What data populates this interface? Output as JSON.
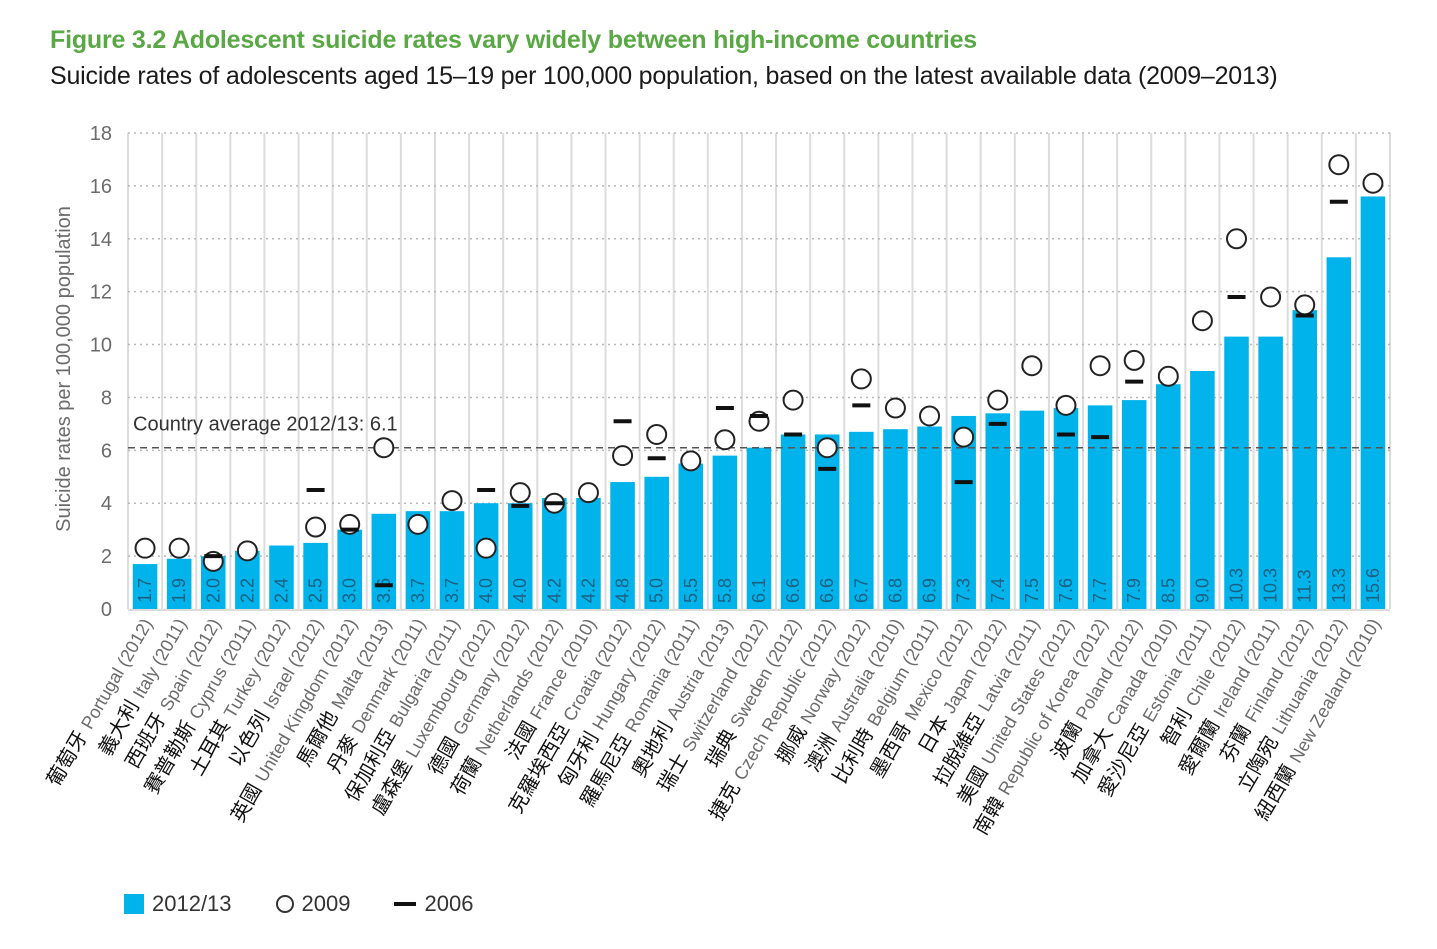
{
  "figure": {
    "title": "Figure 3.2  Adolescent suicide rates vary widely between high-income countries",
    "subtitle": "Suicide rates of adolescents aged 15–19 per 100,000 population, based on the latest available data (2009–2013)"
  },
  "colors": {
    "title_green": "#5aa845",
    "bar_blue": "#00b4eb",
    "bar_label": "#1d5f80",
    "marker": "#111111"
  },
  "legend": {
    "items": [
      {
        "label": "2012/13",
        "kind": "bar"
      },
      {
        "label": "2009",
        "kind": "circle"
      },
      {
        "label": "2006",
        "kind": "dash"
      }
    ]
  },
  "chart_data": {
    "type": "bar",
    "title": "Adolescent suicide rates vary widely between high-income countries",
    "xlabel": "",
    "ylabel": "Suicide rates per 100,000 population",
    "ylim": [
      0,
      18
    ],
    "yticks": [
      0,
      2,
      4,
      6,
      8,
      10,
      12,
      14,
      16,
      18
    ],
    "grid": true,
    "legend_position": "bottom-left",
    "reference_line": {
      "label": "Country average 2012/13: 6.1",
      "value": 6.1
    },
    "categories": [
      {
        "zh": "葡萄牙",
        "en": "Portugal (2012)"
      },
      {
        "zh": "義大利",
        "en": "Italy (2011)"
      },
      {
        "zh": "西班牙",
        "en": "Spain (2012)"
      },
      {
        "zh": "賽普勒斯",
        "en": "Cyprus (2011)"
      },
      {
        "zh": "土耳其",
        "en": "Turkey (2012)"
      },
      {
        "zh": "以色列",
        "en": "Israel (2012)"
      },
      {
        "zh": "英國",
        "en": "United Kingdom (2012)"
      },
      {
        "zh": "馬爾他",
        "en": "Malta (2013)"
      },
      {
        "zh": "丹麥",
        "en": "Denmark (2011)"
      },
      {
        "zh": "保加利亞",
        "en": "Bulgaria (2011)"
      },
      {
        "zh": "盧森堡",
        "en": "Luxembourg (2012)"
      },
      {
        "zh": "德國",
        "en": "Germany (2012)"
      },
      {
        "zh": "荷蘭",
        "en": "Netherlands (2012)"
      },
      {
        "zh": "法國",
        "en": "France (2010)"
      },
      {
        "zh": "克羅埃西亞",
        "en": "Croatia (2012)"
      },
      {
        "zh": "匈牙利",
        "en": "Hungary (2012)"
      },
      {
        "zh": "羅馬尼亞",
        "en": "Romania (2011)"
      },
      {
        "zh": "奧地利",
        "en": "Austria (2013)"
      },
      {
        "zh": "瑞士",
        "en": "Switzerland (2012)"
      },
      {
        "zh": "瑞典",
        "en": "Sweden (2012)"
      },
      {
        "zh": "捷克",
        "en": "Czech Republic (2012)"
      },
      {
        "zh": "挪威",
        "en": "Norway (2012)"
      },
      {
        "zh": "澳洲",
        "en": "Australia (2010)"
      },
      {
        "zh": "比利時",
        "en": "Belgium (2011)"
      },
      {
        "zh": "墨西哥",
        "en": "Mexico (2012)"
      },
      {
        "zh": "日本",
        "en": "Japan (2012)"
      },
      {
        "zh": "拉脫維亞",
        "en": "Latvia (2011)"
      },
      {
        "zh": "美國",
        "en": "United States (2012)"
      },
      {
        "zh": "南韓",
        "en": "Republic of Korea (2012)"
      },
      {
        "zh": "波蘭",
        "en": "Poland (2012)"
      },
      {
        "zh": "加拿大",
        "en": "Canada (2010)"
      },
      {
        "zh": "愛沙尼亞",
        "en": "Estonia (2011)"
      },
      {
        "zh": "智利",
        "en": "Chile (2012)"
      },
      {
        "zh": "愛爾蘭",
        "en": "Ireland (2011)"
      },
      {
        "zh": "芬蘭",
        "en": "Finland (2012)"
      },
      {
        "zh": "立陶宛",
        "en": "Lithuania (2012)"
      },
      {
        "zh": "紐西蘭",
        "en": "New Zealand (2010)"
      }
    ],
    "series": [
      {
        "name": "2012/13",
        "kind": "bar",
        "values": [
          1.7,
          1.9,
          2.0,
          2.2,
          2.4,
          2.5,
          3.0,
          3.6,
          3.7,
          3.7,
          4.0,
          4.0,
          4.2,
          4.2,
          4.8,
          5.0,
          5.5,
          5.8,
          6.1,
          6.6,
          6.6,
          6.7,
          6.8,
          6.9,
          7.3,
          7.4,
          7.5,
          7.6,
          7.7,
          7.9,
          8.5,
          9.0,
          10.3,
          10.3,
          11.3,
          13.3,
          15.6
        ],
        "labels": [
          "1.7",
          "1.9",
          "2.0",
          "2.2",
          "2.4",
          "2.5",
          "3.0",
          "3.6",
          "3.7",
          "3.7",
          "4.0",
          "4.0",
          "4.2",
          "4.2",
          "4.8",
          "5.0",
          "5.5",
          "5.8",
          "6.1",
          "6.6",
          "6.6",
          "6.7",
          "6.8",
          "6.9",
          "7.3",
          "7.4",
          "7.5",
          "7.6",
          "7.7",
          "7.9",
          "8.5",
          "9.0",
          "10.3",
          "10.3",
          "11.3",
          "13.3",
          "15.6"
        ]
      },
      {
        "name": "2009",
        "kind": "circle",
        "values": [
          2.3,
          2.3,
          1.8,
          2.2,
          null,
          3.1,
          3.2,
          6.1,
          3.2,
          4.1,
          2.3,
          4.4,
          4.0,
          4.4,
          5.8,
          6.6,
          5.6,
          6.4,
          7.1,
          7.9,
          6.1,
          8.7,
          7.6,
          7.3,
          6.5,
          7.9,
          9.2,
          7.7,
          9.2,
          9.4,
          8.8,
          10.9,
          14.0,
          11.8,
          11.5,
          16.8,
          16.1
        ]
      },
      {
        "name": "2006",
        "kind": "dash",
        "values": [
          null,
          null,
          2.0,
          null,
          null,
          4.5,
          3.0,
          0.9,
          null,
          null,
          4.5,
          3.9,
          4.0,
          null,
          7.1,
          5.7,
          null,
          7.6,
          7.3,
          6.6,
          5.3,
          7.7,
          null,
          null,
          4.8,
          7.0,
          null,
          6.6,
          6.5,
          8.6,
          null,
          null,
          11.8,
          null,
          11.1,
          15.4,
          null
        ]
      }
    ]
  }
}
